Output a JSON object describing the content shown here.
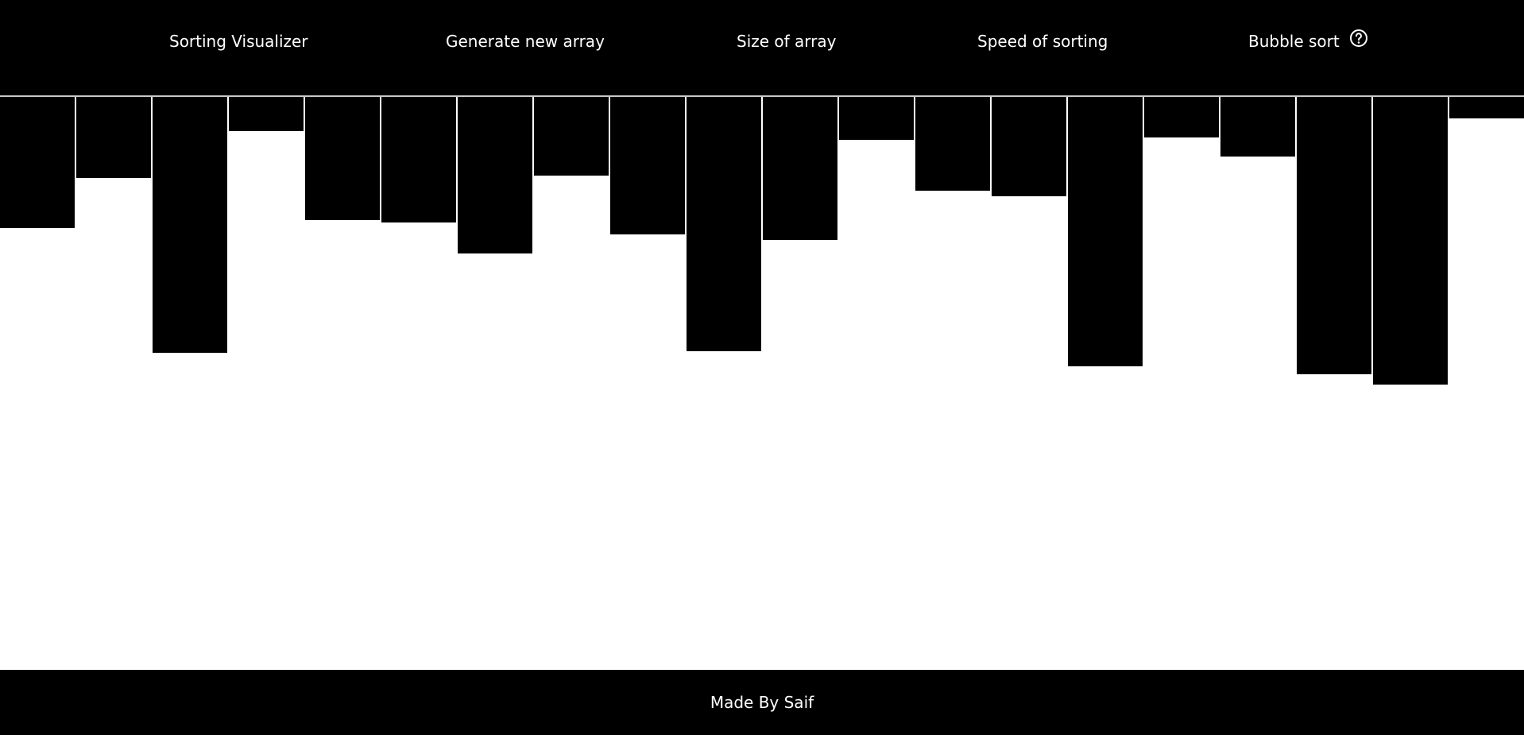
{
  "navbar": {
    "title": "Sorting Visualizer",
    "generate_label": "Generate new array",
    "size_label": "Size of array",
    "speed_label": "Speed of sorting",
    "algorithm_label": "Bubble sort",
    "help_icon": "question-circle-icon"
  },
  "array": {
    "values": [
      165,
      102,
      322,
      43,
      155,
      158,
      197,
      99,
      173,
      320,
      180,
      54,
      118,
      125,
      339,
      51,
      75,
      349,
      362,
      27
    ],
    "bar_color": "#000000",
    "background_color": "#ffffff"
  },
  "footer": {
    "text": "Made By Saif"
  }
}
